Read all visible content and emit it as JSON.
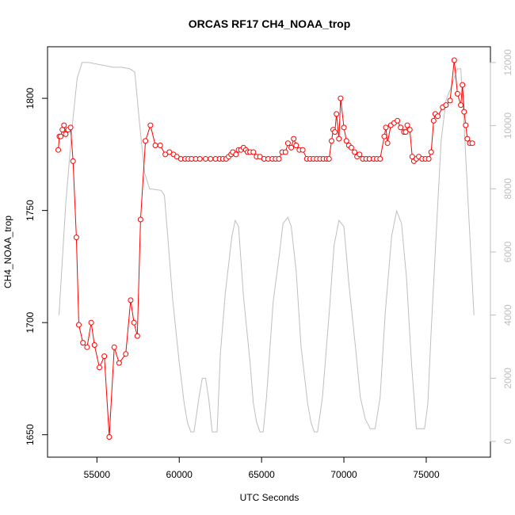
{
  "chart_data": {
    "type": "line",
    "title": "ORCAS RF17 CH4_NOAA_trop",
    "xlabel": "UTC Seconds",
    "ylabel": "CH4_NOAA_trop",
    "xlim": [
      52000,
      78900
    ],
    "ylim": [
      1640,
      1823
    ],
    "y2lim": [
      -500,
      12500
    ],
    "x_ticks": [
      55000,
      60000,
      65000,
      70000,
      75000
    ],
    "x_tick_labels": [
      "55000",
      "60000",
      "65000",
      "70000",
      "75000"
    ],
    "y_ticks": [
      1650,
      1700,
      1750,
      1800
    ],
    "y_tick_labels": [
      "1650",
      "1700",
      "1750",
      "1800"
    ],
    "y2_ticks": [
      0,
      2000,
      4000,
      6000,
      8000,
      10000,
      12000
    ],
    "y2_tick_labels": [
      "0",
      "2000",
      "4000",
      "6000",
      "8000",
      "10000",
      "12000"
    ],
    "grid": false,
    "colors": {
      "ch4": "#ff0000",
      "altitude": "#bebebe",
      "axes": "#000000"
    },
    "series": [
      {
        "axis": "left",
        "style": "line+points",
        "points": [
          [
            52650,
            1777
          ],
          [
            52720,
            1783
          ],
          [
            52800,
            1783
          ],
          [
            52900,
            1786
          ],
          [
            53000,
            1788
          ],
          [
            53100,
            1784
          ],
          [
            53250,
            1786
          ],
          [
            53400,
            1787
          ],
          [
            53550,
            1772
          ],
          [
            53750,
            1738
          ],
          [
            53900,
            1699
          ],
          [
            54150,
            1691
          ],
          [
            54400,
            1689
          ],
          [
            54650,
            1700
          ],
          [
            54850,
            1690
          ],
          [
            55150,
            1680
          ],
          [
            55450,
            1685
          ],
          [
            55750,
            1649
          ],
          [
            56050,
            1689
          ],
          [
            56350,
            1682
          ],
          [
            56750,
            1686
          ],
          [
            57050,
            1710
          ],
          [
            57250,
            1700
          ],
          [
            57450,
            1694
          ],
          [
            57650,
            1746
          ],
          [
            57950,
            1781
          ],
          [
            58250,
            1788
          ],
          [
            58550,
            1779
          ],
          [
            58850,
            1779
          ],
          [
            59150,
            1775
          ],
          [
            59400,
            1776
          ],
          [
            59650,
            1775
          ],
          [
            59850,
            1774
          ],
          [
            60100,
            1773
          ],
          [
            60350,
            1773
          ],
          [
            60550,
            1773
          ],
          [
            60750,
            1773
          ],
          [
            61000,
            1773
          ],
          [
            61250,
            1773
          ],
          [
            61600,
            1773
          ],
          [
            61900,
            1773
          ],
          [
            62200,
            1773
          ],
          [
            62450,
            1773
          ],
          [
            62650,
            1773
          ],
          [
            62850,
            1773
          ],
          [
            63000,
            1774
          ],
          [
            63150,
            1775
          ],
          [
            63250,
            1776
          ],
          [
            63450,
            1775
          ],
          [
            63600,
            1777
          ],
          [
            63750,
            1777
          ],
          [
            63900,
            1778
          ],
          [
            64050,
            1777
          ],
          [
            64150,
            1776
          ],
          [
            64300,
            1776
          ],
          [
            64500,
            1776
          ],
          [
            64700,
            1774
          ],
          [
            64900,
            1774
          ],
          [
            65150,
            1773
          ],
          [
            65400,
            1773
          ],
          [
            65650,
            1773
          ],
          [
            65850,
            1773
          ],
          [
            66050,
            1773
          ],
          [
            66250,
            1776
          ],
          [
            66450,
            1776
          ],
          [
            66600,
            1780
          ],
          [
            66800,
            1778
          ],
          [
            66950,
            1782
          ],
          [
            67100,
            1779
          ],
          [
            67300,
            1777
          ],
          [
            67500,
            1777
          ],
          [
            67750,
            1773
          ],
          [
            67950,
            1773
          ],
          [
            68150,
            1773
          ],
          [
            68350,
            1773
          ],
          [
            68550,
            1773
          ],
          [
            68750,
            1773
          ],
          [
            68950,
            1773
          ],
          [
            69100,
            1773
          ],
          [
            69250,
            1781
          ],
          [
            69350,
            1786
          ],
          [
            69450,
            1785
          ],
          [
            69550,
            1793
          ],
          [
            69700,
            1782
          ],
          [
            69800,
            1800
          ],
          [
            70000,
            1787
          ],
          [
            70150,
            1781
          ],
          [
            70300,
            1779
          ],
          [
            70450,
            1778
          ],
          [
            70650,
            1776
          ],
          [
            70800,
            1774
          ],
          [
            70950,
            1775
          ],
          [
            71150,
            1773
          ],
          [
            71350,
            1773
          ],
          [
            71550,
            1773
          ],
          [
            71800,
            1773
          ],
          [
            72000,
            1773
          ],
          [
            72200,
            1773
          ],
          [
            72450,
            1783
          ],
          [
            72550,
            1787
          ],
          [
            72650,
            1780
          ],
          [
            72850,
            1788
          ],
          [
            73050,
            1789
          ],
          [
            73250,
            1790
          ],
          [
            73450,
            1787
          ],
          [
            73650,
            1785
          ],
          [
            73750,
            1785
          ],
          [
            73850,
            1788
          ],
          [
            74000,
            1786
          ],
          [
            74150,
            1774
          ],
          [
            74250,
            1772
          ],
          [
            74400,
            1773
          ],
          [
            74550,
            1774
          ],
          [
            74750,
            1773
          ],
          [
            74950,
            1773
          ],
          [
            75150,
            1773
          ],
          [
            75300,
            1776
          ],
          [
            75450,
            1790
          ],
          [
            75550,
            1793
          ],
          [
            75700,
            1792
          ],
          [
            76000,
            1796
          ],
          [
            76200,
            1797
          ],
          [
            76450,
            1799
          ],
          [
            76700,
            1817
          ],
          [
            76900,
            1802
          ],
          [
            77100,
            1797
          ],
          [
            77200,
            1806
          ],
          [
            77300,
            1794
          ],
          [
            77400,
            1788
          ],
          [
            77500,
            1782
          ],
          [
            77650,
            1780
          ],
          [
            77800,
            1780
          ]
        ]
      },
      {
        "axis": "right",
        "style": "line",
        "points": [
          [
            52700,
            4000
          ],
          [
            53100,
            7500
          ],
          [
            53500,
            10000
          ],
          [
            53800,
            11500
          ],
          [
            54100,
            12000
          ],
          [
            54500,
            12000
          ],
          [
            55000,
            11950
          ],
          [
            55500,
            11900
          ],
          [
            56000,
            11850
          ],
          [
            56500,
            11850
          ],
          [
            57000,
            11800
          ],
          [
            57300,
            11700
          ],
          [
            57600,
            10000
          ],
          [
            57900,
            8500
          ],
          [
            58200,
            8000
          ],
          [
            58900,
            7950
          ],
          [
            59100,
            7800
          ],
          [
            59300,
            6500
          ],
          [
            59600,
            4500
          ],
          [
            60000,
            2500
          ],
          [
            60300,
            1200
          ],
          [
            60500,
            600
          ],
          [
            60700,
            300
          ],
          [
            60900,
            300
          ],
          [
            61200,
            1400
          ],
          [
            61400,
            2000
          ],
          [
            61600,
            2000
          ],
          [
            61800,
            1300
          ],
          [
            62000,
            300
          ],
          [
            62300,
            300
          ],
          [
            62500,
            2800
          ],
          [
            62800,
            4700
          ],
          [
            63200,
            6500
          ],
          [
            63400,
            7000
          ],
          [
            63600,
            6800
          ],
          [
            63900,
            4600
          ],
          [
            64300,
            2500
          ],
          [
            64500,
            1200
          ],
          [
            64700,
            600
          ],
          [
            64900,
            300
          ],
          [
            65100,
            300
          ],
          [
            65300,
            1400
          ],
          [
            65700,
            4400
          ],
          [
            66100,
            6000
          ],
          [
            66300,
            6900
          ],
          [
            66600,
            7100
          ],
          [
            66800,
            6800
          ],
          [
            67100,
            5400
          ],
          [
            67400,
            3000
          ],
          [
            67800,
            1200
          ],
          [
            68000,
            600
          ],
          [
            68200,
            300
          ],
          [
            68400,
            300
          ],
          [
            68700,
            1400
          ],
          [
            69100,
            4000
          ],
          [
            69400,
            6200
          ],
          [
            69700,
            7000
          ],
          [
            70000,
            6800
          ],
          [
            70300,
            5000
          ],
          [
            70700,
            3000
          ],
          [
            71000,
            1400
          ],
          [
            71300,
            700
          ],
          [
            71600,
            400
          ],
          [
            71900,
            400
          ],
          [
            72200,
            1400
          ],
          [
            72500,
            4000
          ],
          [
            72900,
            6500
          ],
          [
            73200,
            7300
          ],
          [
            73500,
            6900
          ],
          [
            73800,
            5200
          ],
          [
            74100,
            2500
          ],
          [
            74400,
            400
          ],
          [
            74600,
            400
          ],
          [
            74900,
            400
          ],
          [
            75100,
            1200
          ],
          [
            75300,
            3500
          ],
          [
            75600,
            6500
          ],
          [
            75900,
            9500
          ],
          [
            76200,
            10800
          ],
          [
            76500,
            11200
          ],
          [
            76700,
            11500
          ],
          [
            76900,
            11800
          ],
          [
            77100,
            11800
          ],
          [
            77300,
            10000
          ],
          [
            77600,
            7000
          ],
          [
            77900,
            4000
          ]
        ]
      }
    ]
  }
}
